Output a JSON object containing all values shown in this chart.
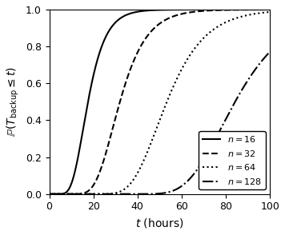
{
  "title": "",
  "xlabel": "$t$ (hours)",
  "ylabel": "$\\mathbb{P}(T_{\\mathrm{backup}} \\leq t)$",
  "xlim": [
    0,
    100
  ],
  "ylim": [
    0,
    1
  ],
  "xticks": [
    0,
    20,
    40,
    60,
    80,
    100
  ],
  "yticks": [
    0,
    0.2,
    0.4,
    0.6,
    0.8,
    1.0
  ],
  "series": [
    {
      "n": 16,
      "label": "$n=16$",
      "linestyle": "solid",
      "lw": 1.5,
      "color": "#000000",
      "lambda": 0.18
    },
    {
      "n": 32,
      "label": "$n=32$",
      "linestyle": "dashed",
      "lw": 1.5,
      "color": "#000000",
      "lambda": 0.12
    },
    {
      "n": 64,
      "label": "$n=64$",
      "linestyle": "dotted",
      "lw": 1.5,
      "color": "#000000",
      "lambda": 0.085
    },
    {
      "n": 128,
      "label": "$n=128$",
      "linestyle": "dashdot",
      "lw": 1.5,
      "color": "#000000",
      "lambda": 0.062
    }
  ],
  "legend_loc": "lower right",
  "legend_fontsize": 8,
  "figsize": [
    3.56,
    2.94
  ],
  "dpi": 100
}
